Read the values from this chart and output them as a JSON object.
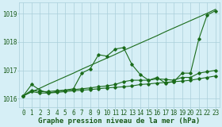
{
  "title": "Graphe pression niveau de la mer (hPa)",
  "xlabel_hours": [
    0,
    1,
    2,
    3,
    4,
    5,
    6,
    7,
    8,
    9,
    10,
    11,
    12,
    13,
    14,
    15,
    16,
    17,
    18,
    19,
    20,
    21,
    22,
    23
  ],
  "ylim": [
    1015.7,
    1019.4
  ],
  "yticks": [
    1016,
    1017,
    1018,
    1019
  ],
  "background_color": "#d6eff6",
  "grid_color": "#aacfda",
  "line_color": "#1a6b1a",
  "text_color": "#1a5c1a",
  "title_fontsize": 6.5,
  "tick_fontsize": 5.5,
  "series1": [
    1016.1,
    1016.5,
    1016.3,
    1016.2,
    1016.25,
    1016.3,
    1016.35,
    1016.9,
    1017.05,
    1017.55,
    1017.5,
    1017.75,
    1017.8,
    1017.2,
    1016.85,
    1016.65,
    1016.75,
    1016.55,
    1016.6,
    1016.9,
    1016.9,
    1018.1,
    1018.95,
    1019.1
  ],
  "series2": [
    1016.1,
    1016.3,
    1016.25,
    1016.25,
    1016.28,
    1016.3,
    1016.32,
    1016.35,
    1016.38,
    1016.42,
    1016.45,
    1016.5,
    1016.6,
    1016.65,
    1016.65,
    1016.65,
    1016.7,
    1016.68,
    1016.65,
    1016.75,
    1016.75,
    1016.9,
    1016.95,
    1017.0
  ],
  "series3": [
    1016.1,
    1016.25,
    1016.2,
    1016.2,
    1016.22,
    1016.25,
    1016.28,
    1016.3,
    1016.32,
    1016.35,
    1016.38,
    1016.4,
    1016.42,
    1016.45,
    1016.5,
    1016.52,
    1016.55,
    1016.57,
    1016.6,
    1016.62,
    1016.65,
    1016.7,
    1016.75,
    1016.8
  ],
  "series_linear": [
    1016.1,
    1016.24,
    1016.37,
    1016.51,
    1016.64,
    1016.77,
    1016.9,
    1017.04,
    1017.17,
    1017.3,
    1017.43,
    1017.56,
    1017.7,
    1017.83,
    1017.96,
    1018.09,
    1018.22,
    1018.36,
    1018.49,
    1018.62,
    1018.75,
    1018.88,
    1019.01,
    1019.15
  ]
}
